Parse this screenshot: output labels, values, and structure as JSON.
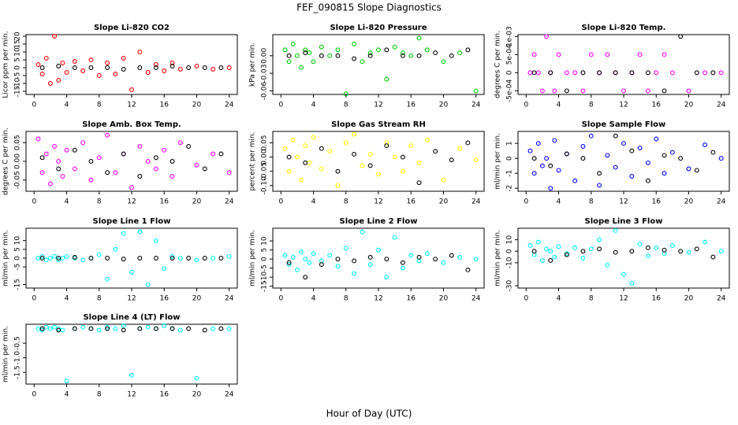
{
  "title": "FEF_090815  Slope Diagnostics",
  "x_label": "Hour of Day (UTC)",
  "chart_data": [
    {
      "type": "scatter",
      "title": "Slope Li-820 CO2",
      "y_label": "Licor ppm per min.",
      "xlim": [
        -1,
        25
      ],
      "xticks": [
        0,
        4,
        8,
        12,
        16,
        20,
        24
      ],
      "ylim": [
        -17,
        21
      ],
      "yticks": [
        -15,
        -10,
        -5,
        0,
        5,
        10,
        15,
        20
      ],
      "series": [
        {
          "color": "#ff0000",
          "x": [
            0.5,
            1,
            1.5,
            2,
            2.5,
            3,
            3.5,
            4,
            5,
            6,
            7,
            8,
            9,
            10,
            11,
            12,
            13,
            14,
            15,
            16,
            17,
            18,
            20,
            22,
            24
          ],
          "values": [
            2,
            -4,
            6,
            -10,
            20,
            -8,
            3,
            -3,
            4,
            -2,
            5,
            -5,
            3,
            -4,
            6,
            -14,
            10,
            -3,
            2,
            -2,
            3,
            -1,
            1,
            -1,
            0
          ]
        },
        {
          "color": "#000000",
          "x": [
            1,
            3,
            5,
            7,
            9,
            11,
            13,
            15,
            17,
            19,
            21,
            23
          ],
          "values": [
            0,
            1,
            0,
            0,
            0,
            -1,
            0,
            0,
            1,
            0,
            0,
            0
          ]
        }
      ]
    },
    {
      "type": "scatter",
      "title": "Slope Li-820 Pressure",
      "y_label": "kPa per min.",
      "xlim": [
        -1,
        25
      ],
      "xticks": [
        0,
        4,
        8,
        12,
        16,
        20,
        24
      ],
      "ylim": [
        -0.066,
        0.036
      ],
      "yticks": [
        -0.06,
        -0.03,
        {
          "value": 0,
          "label": "0.00"
        }
      ],
      "series": [
        {
          "color": "#00cc00",
          "x": [
            0.5,
            1,
            1.5,
            2,
            2.5,
            3,
            3.5,
            4,
            5,
            6,
            7,
            8,
            9,
            10,
            11,
            12,
            13,
            14,
            15,
            16,
            17,
            18,
            20,
            22,
            24
          ],
          "values": [
            0.01,
            -0.01,
            0.02,
            0,
            -0.02,
            0.01,
            0.005,
            -0.01,
            0.015,
            0,
            0.01,
            -0.065,
            0.02,
            -0.01,
            0.005,
            0.01,
            -0.04,
            0.015,
            0.005,
            0,
            0.03,
            0.01,
            -0.01,
            0.005,
            -0.06
          ]
        },
        {
          "color": "#000000",
          "x": [
            1,
            3,
            5,
            7,
            9,
            11,
            13,
            15,
            17,
            19,
            21,
            23
          ],
          "values": [
            0,
            0.005,
            0,
            0,
            -0.005,
            0,
            0.01,
            0,
            0,
            0.005,
            0,
            0.01
          ]
        }
      ]
    },
    {
      "type": "scatter",
      "title": "Slope Li-820 Temp.",
      "y_label": "degrees C per min.",
      "xlim": [
        -1,
        25
      ],
      "xticks": [
        0,
        4,
        8,
        12,
        16,
        20,
        24
      ],
      "ylim": [
        -0.0006,
        0.00105
      ],
      "yticks": [
        {
          "value": -0.0005,
          "label": "-5e-04"
        },
        0,
        {
          "value": 0.0005,
          "label": "5e-04"
        },
        {
          "value": 0.001,
          "label": "1e-03"
        }
      ],
      "series": [
        {
          "color": "#ff00ff",
          "x": [
            0.5,
            1,
            1.5,
            2,
            2.5,
            3,
            3.5,
            4,
            5,
            6,
            7,
            8,
            9,
            10,
            11,
            12,
            13,
            14,
            15,
            16,
            17,
            18,
            20,
            22,
            24
          ],
          "values": [
            0,
            0.0005,
            0,
            -0.0005,
            0.001,
            0,
            -0.0005,
            0.0005,
            0,
            0,
            -0.0005,
            0.0005,
            0,
            0.0005,
            0,
            -0.0005,
            0,
            0.0005,
            -0.0005,
            0,
            0.0005,
            0,
            -0.0005,
            0,
            0
          ]
        },
        {
          "color": "#000000",
          "x": [
            1,
            3,
            5,
            7,
            9,
            11,
            13,
            15,
            17,
            19,
            21,
            23
          ],
          "values": [
            0,
            0,
            -0.0005,
            0,
            0,
            0,
            0,
            0,
            -0.0005,
            0.001,
            0,
            0
          ]
        }
      ]
    },
    {
      "type": "scatter",
      "title": "Slope Amb. Box Temp.",
      "y_label": "degrees C per min.",
      "xlim": [
        -1,
        25
      ],
      "xticks": [
        0,
        4,
        8,
        12,
        16,
        20,
        24
      ],
      "ylim": [
        -0.08,
        0.08
      ],
      "yticks": [
        -0.05,
        {
          "value": 0,
          "label": "0.00"
        },
        0.05
      ],
      "series": [
        {
          "color": "#ff00ff",
          "x": [
            0.5,
            1,
            1.5,
            2,
            2.5,
            3,
            3.5,
            4,
            5,
            6,
            7,
            8,
            9,
            10,
            11,
            12,
            13,
            14,
            15,
            16,
            17,
            18,
            20,
            22,
            24
          ],
          "values": [
            0.06,
            -0.03,
            0.02,
            -0.06,
            0.04,
            0,
            -0.04,
            0.03,
            -0.02,
            0.05,
            -0.05,
            0.01,
            0.07,
            -0.03,
            0.02,
            -0.07,
            0.04,
            0,
            -0.02,
            0.03,
            -0.04,
            0.05,
            -0.01,
            0.02,
            -0.03
          ]
        },
        {
          "color": "#000000",
          "x": [
            1,
            3,
            5,
            7,
            9,
            11,
            13,
            15,
            17,
            19,
            21,
            23
          ],
          "values": [
            0.01,
            -0.02,
            0.03,
            0,
            -0.03,
            0.02,
            -0.04,
            0.01,
            0,
            0.04,
            -0.02,
            0.02
          ]
        }
      ]
    },
    {
      "type": "scatter",
      "title": "Slope Gas Stream RH",
      "y_label": "percent per min.",
      "xlim": [
        -1,
        25
      ],
      "xticks": [
        0,
        4,
        8,
        12,
        16,
        20,
        24
      ],
      "ylim": [
        -0.12,
        0.09
      ],
      "yticks": [
        {
          "value": -0.1,
          "label": "-0.10"
        },
        -0.05,
        {
          "value": 0,
          "label": "0.00"
        },
        0.05
      ],
      "series": [
        {
          "color": "#ffff00",
          "x": [
            0.5,
            1,
            1.5,
            2,
            2.5,
            3,
            3.5,
            4,
            5,
            6,
            7,
            8,
            9,
            10,
            11,
            12,
            13,
            14,
            15,
            16,
            17,
            18,
            20,
            22,
            24
          ],
          "values": [
            0.03,
            -0.05,
            0.06,
            0,
            -0.08,
            0.04,
            -0.02,
            0.07,
            -0.04,
            0.02,
            -0.1,
            0.05,
            0.08,
            -0.03,
            0.01,
            -0.06,
            0.05,
            0,
            -0.05,
            0.04,
            -0.02,
            0.06,
            -0.08,
            0.03,
            -0.01
          ]
        },
        {
          "color": "#000000",
          "x": [
            1,
            3,
            5,
            7,
            9,
            11,
            13,
            15,
            17,
            19,
            21,
            23
          ],
          "values": [
            0,
            -0.02,
            0.03,
            -0.05,
            0.01,
            -0.03,
            0.04,
            0,
            -0.09,
            0.02,
            -0.01,
            0.05
          ]
        }
      ]
    },
    {
      "type": "scatter",
      "title": "Slope Sample Flow",
      "y_label": "ml/min per min.",
      "xlim": [
        -1,
        25
      ],
      "xticks": [
        0,
        4,
        8,
        12,
        16,
        20,
        24
      ],
      "ylim": [
        -2.2,
        1.8
      ],
      "yticks": [
        -2,
        -1,
        0,
        1
      ],
      "series": [
        {
          "color": "#0000ff",
          "x": [
            0.5,
            1,
            1.5,
            2,
            2.5,
            3,
            3.5,
            4,
            5,
            6,
            7,
            8,
            9,
            10,
            11,
            12,
            13,
            14,
            15,
            16,
            17,
            18,
            20,
            22,
            24
          ],
          "values": [
            0.5,
            -1,
            1,
            -0.5,
            0,
            -2,
            1.2,
            -0.8,
            0.3,
            -1.5,
            0.8,
            1.5,
            -1.8,
            0.2,
            -0.6,
            1,
            -1.2,
            0.7,
            -0.3,
            1.3,
            -1,
            0.4,
            -0.7,
            0.9,
            0
          ]
        },
        {
          "color": "#000000",
          "x": [
            1,
            3,
            5,
            7,
            9,
            11,
            13,
            15,
            17,
            19,
            21,
            23
          ],
          "values": [
            0,
            -0.5,
            0.3,
            0,
            -1,
            1.5,
            0.5,
            -1.5,
            0.2,
            0,
            -0.8,
            0.4
          ]
        }
      ]
    },
    {
      "type": "scatter",
      "title": "Slope Line 1 Flow",
      "y_label": "ml/min per min.",
      "xlim": [
        -1,
        25
      ],
      "xticks": [
        0,
        4,
        8,
        12,
        16,
        20,
        24
      ],
      "ylim": [
        -17,
        17
      ],
      "yticks": [
        -15,
        -5,
        0,
        5,
        10
      ],
      "series": [
        {
          "color": "#00ffff",
          "x": [
            0.5,
            1,
            1.5,
            2,
            2.5,
            3,
            3.5,
            4,
            5,
            6,
            7,
            8,
            9,
            10,
            11,
            12,
            13,
            14,
            15,
            16,
            17,
            18,
            20,
            22,
            24
          ],
          "values": [
            0,
            1,
            -1,
            0,
            1,
            -1,
            0,
            1,
            0,
            -1,
            0,
            2,
            -12,
            5,
            14,
            -8,
            15,
            -15,
            10,
            -6,
            1,
            0,
            -1,
            0,
            1
          ]
        },
        {
          "color": "#000000",
          "x": [
            1,
            3,
            5,
            7,
            9,
            11,
            13,
            15,
            17,
            19,
            21,
            23
          ],
          "values": [
            0,
            0,
            0.5,
            0,
            0,
            -0.5,
            0,
            0,
            0,
            0,
            0,
            0
          ]
        }
      ]
    },
    {
      "type": "scatter",
      "title": "Slope Line 2 Flow",
      "y_label": "ml/min per min.",
      "xlim": [
        -1,
        25
      ],
      "xticks": [
        0,
        4,
        8,
        12,
        16,
        20,
        24
      ],
      "ylim": [
        -16,
        17
      ],
      "yticks": [
        -15,
        -10,
        -5,
        0,
        5,
        10
      ],
      "series": [
        {
          "color": "#00ffff",
          "x": [
            0.5,
            1,
            1.5,
            2,
            2.5,
            3,
            3.5,
            4,
            5,
            6,
            7,
            8,
            9,
            10,
            11,
            12,
            13,
            14,
            15,
            16,
            17,
            18,
            20,
            22,
            24
          ],
          "values": [
            2,
            -3,
            1,
            -6,
            4,
            0,
            -2,
            3,
            -1,
            2,
            -4,
            6,
            -8,
            15,
            -3,
            5,
            -10,
            12,
            -5,
            2,
            -1,
            3,
            -2,
            1,
            0
          ]
        },
        {
          "color": "#000000",
          "x": [
            1,
            3,
            5,
            7,
            9,
            11,
            13,
            15,
            17,
            19,
            21,
            23
          ],
          "values": [
            -2,
            -10,
            -3,
            0,
            -1,
            1,
            0,
            -2,
            1,
            0,
            2,
            -6
          ]
        }
      ]
    },
    {
      "type": "scatter",
      "title": "Slope Line 3 Flow",
      "y_label": "ml/min per min.",
      "xlim": [
        -1,
        25
      ],
      "xticks": [
        0,
        4,
        8,
        12,
        16,
        20,
        24
      ],
      "ylim": [
        -32,
        20
      ],
      "yticks": [
        -30,
        -10,
        0,
        10
      ],
      "series": [
        {
          "color": "#00ffff",
          "x": [
            0.5,
            1,
            1.5,
            2,
            2.5,
            3,
            3.5,
            4,
            5,
            6,
            7,
            8,
            9,
            10,
            11,
            12,
            13,
            14,
            15,
            16,
            17,
            18,
            20,
            22,
            24
          ],
          "values": [
            5,
            -3,
            8,
            -8,
            2,
            0,
            -5,
            4,
            -2,
            3,
            -6,
            2,
            10,
            -12,
            18,
            -20,
            -28,
            6,
            -4,
            3,
            -2,
            5,
            -1,
            8,
            0
          ]
        },
        {
          "color": "#000000",
          "x": [
            1,
            3,
            5,
            7,
            9,
            11,
            13,
            15,
            17,
            19,
            21,
            23
          ],
          "values": [
            0,
            -8,
            -3,
            0,
            2,
            -1,
            0,
            3,
            1,
            0,
            2,
            -5
          ]
        }
      ]
    },
    {
      "type": "scatter",
      "title": "Slope Line 4 (LT) Flow",
      "y_label": "ml/min per min.",
      "xlim": [
        -1,
        25
      ],
      "xticks": [
        0,
        4,
        8,
        12,
        16,
        20,
        24
      ],
      "ylim": [
        -1.9,
        0.15
      ],
      "yticks": [
        -1.5,
        {
          "value": -1,
          "label": "-1.0"
        },
        -0.5
      ],
      "series": [
        {
          "color": "#00ffff",
          "x": [
            0.5,
            1,
            1.5,
            2,
            2.5,
            3,
            3.5,
            4,
            5,
            6,
            7,
            8,
            9,
            10,
            11,
            12,
            13,
            14,
            15,
            16,
            17,
            18,
            20,
            22,
            24
          ],
          "values": [
            0,
            -0.05,
            0.05,
            0,
            0.05,
            0,
            -0.05,
            -1.8,
            0,
            0.05,
            0,
            -0.05,
            0.05,
            0,
            0.1,
            -1.6,
            0,
            0.05,
            0,
            0.1,
            0,
            -0.05,
            -1.7,
            0,
            0
          ]
        },
        {
          "color": "#000000",
          "x": [
            1,
            3,
            5,
            7,
            9,
            11,
            13,
            15,
            17,
            19,
            21,
            23
          ],
          "values": [
            0,
            -0.05,
            0,
            0,
            0,
            -0.05,
            0,
            0,
            0,
            0,
            -0.05,
            0
          ]
        }
      ]
    }
  ]
}
